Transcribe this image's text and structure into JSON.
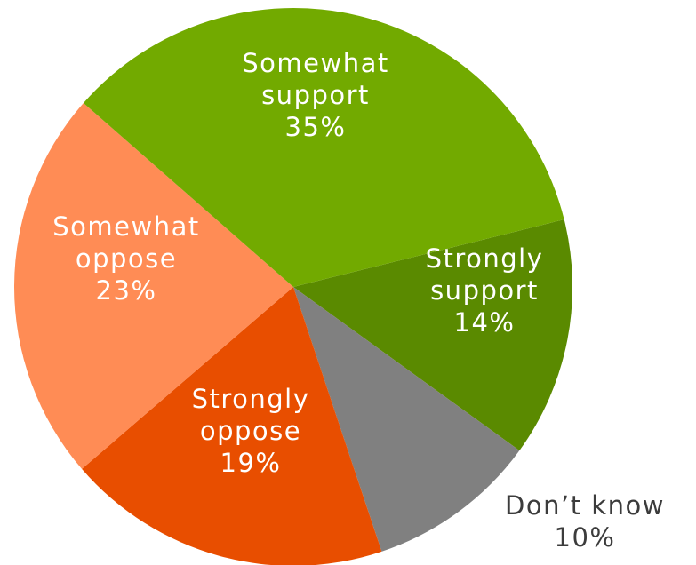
{
  "chart_data": {
    "type": "pie",
    "title": "",
    "slices": [
      {
        "category": "Strongly support",
        "value": 14,
        "label": "14%",
        "color": "#5a8a00"
      },
      {
        "category": "Don't know",
        "value": 10,
        "label": "10%",
        "color": "#808080"
      },
      {
        "category": "Strongly oppose",
        "value": 19,
        "label": "19%",
        "color": "#e84e00"
      },
      {
        "category": "Somewhat oppose",
        "value": 23,
        "label": "23%",
        "color": "#ff8c55"
      },
      {
        "category": "Somewhat support",
        "value": 35,
        "label": "35%",
        "color": "#72aa00"
      }
    ],
    "start_angle_deg": 76,
    "direction": "clockwise",
    "label_colors": {
      "inside": "#ffffff",
      "outside": "#3c3c3c"
    },
    "labels": [
      {
        "lines": [
          "Strongly",
          "support",
          "14%"
        ],
        "placement": "inside"
      },
      {
        "lines": [
          "Don’t know",
          "10%"
        ],
        "placement": "outside"
      },
      {
        "lines": [
          "Strongly",
          "oppose",
          "19%"
        ],
        "placement": "inside"
      },
      {
        "lines": [
          "Somewhat",
          "oppose",
          "23%"
        ],
        "placement": "inside"
      },
      {
        "lines": [
          "Somewhat",
          "support",
          "35%"
        ],
        "placement": "inside"
      }
    ]
  }
}
